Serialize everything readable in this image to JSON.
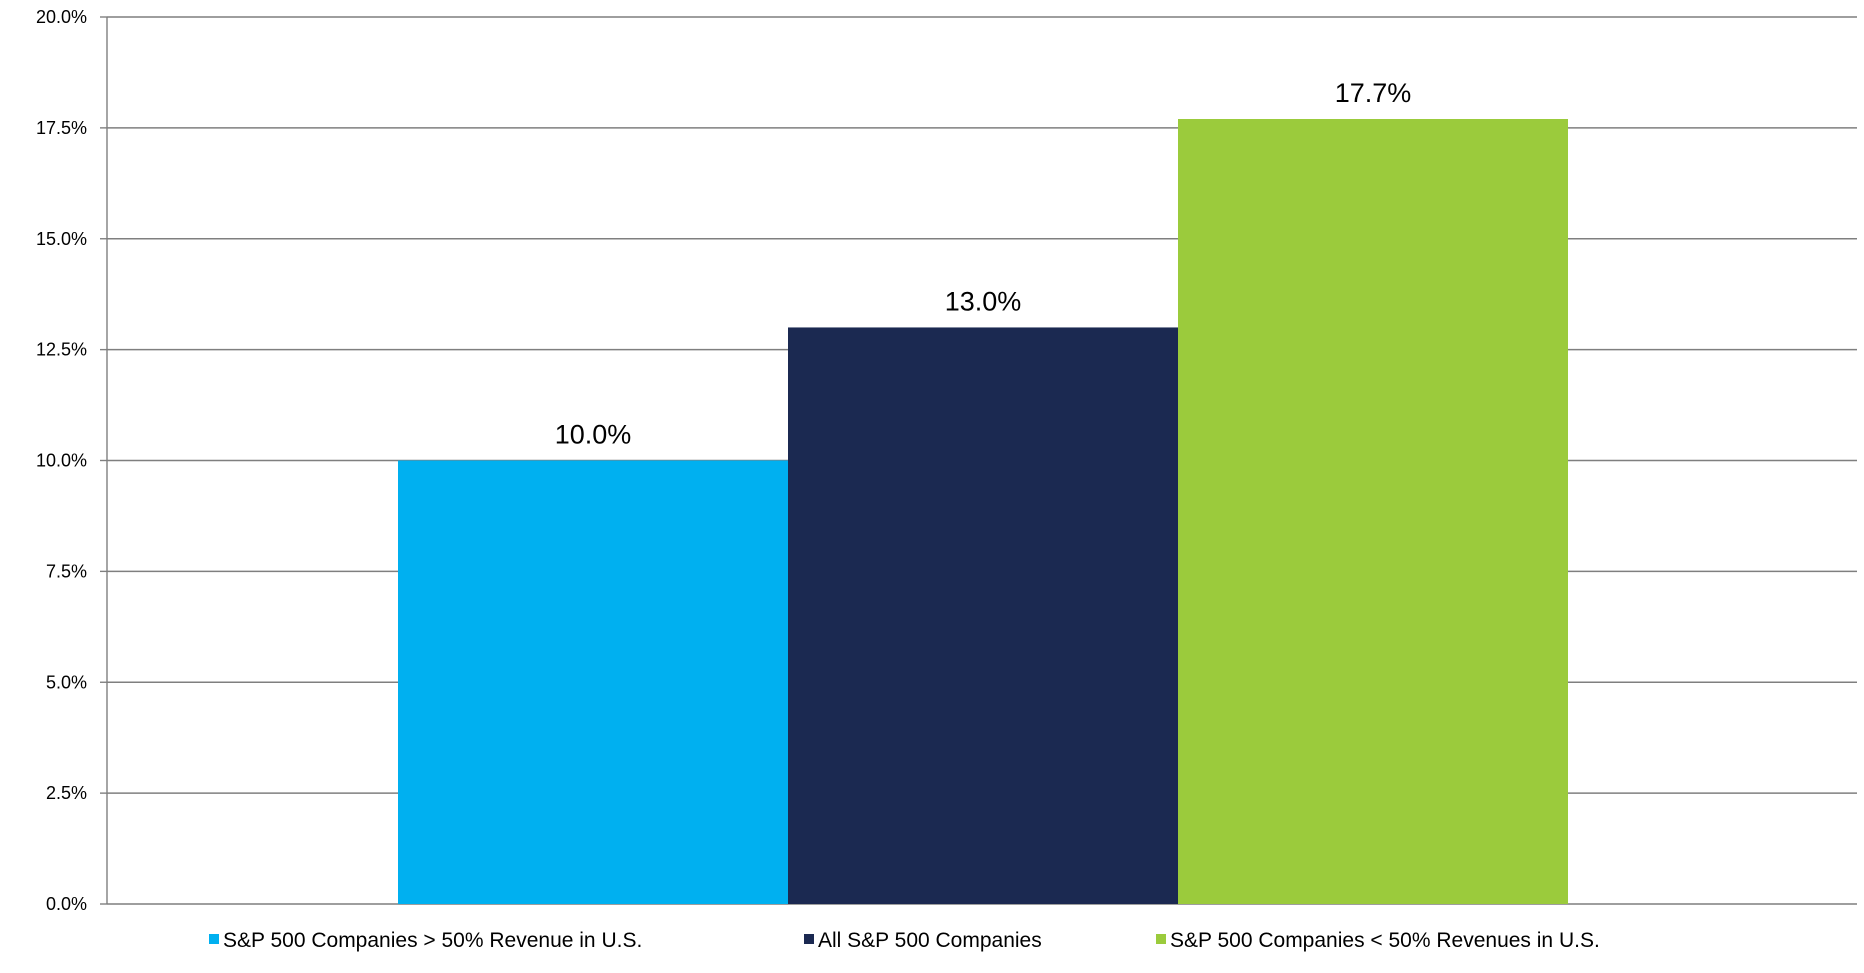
{
  "chart_data": {
    "type": "bar",
    "title": "",
    "xlabel": "",
    "ylabel": "",
    "ylim": [
      0,
      20
    ],
    "y_tick_step": 2.5,
    "y_tick_labels": [
      "0.0%",
      "2.5%",
      "5.0%",
      "7.5%",
      "10.0%",
      "12.5%",
      "15.0%",
      "17.5%",
      "20.0%"
    ],
    "grid": true,
    "legend_position": "bottom",
    "series": [
      {
        "name": "S&P 500 Companies > 50% Revenue in U.S.",
        "value": 10.0,
        "label": "10.0%",
        "color": "#00b0f0"
      },
      {
        "name": "All S&P 500 Companies",
        "value": 13.0,
        "label": "13.0%",
        "color": "#1b2951"
      },
      {
        "name": "S&P 500 Companies < 50% Revenues in U.S.",
        "value": 17.7,
        "label": "17.7%",
        "color": "#9bcb3c"
      }
    ]
  }
}
